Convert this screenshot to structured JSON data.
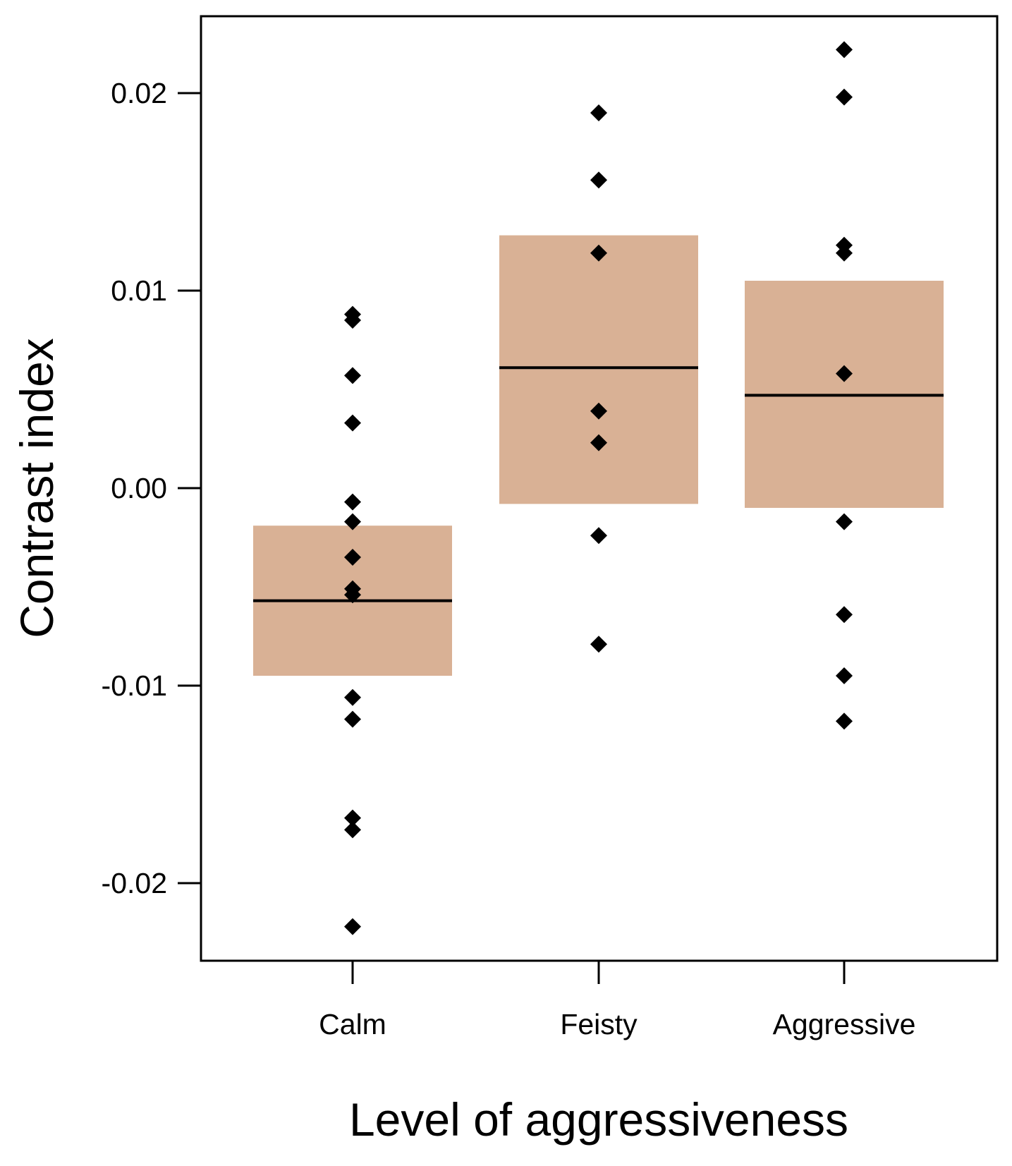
{
  "chart_data": {
    "type": "box-dot",
    "title": "",
    "xlabel": "Level of aggressiveness",
    "ylabel": "Contrast index",
    "ylim": [
      -0.0245,
      0.0235
    ],
    "yticks": [
      -0.02,
      -0.01,
      0.0,
      0.01,
      0.02
    ],
    "ytick_labels": [
      "-0.02",
      "-0.01",
      "0.00",
      "0.01",
      "0.02"
    ],
    "categories": [
      "Calm",
      "Feisty",
      "Aggressive"
    ],
    "boxes": [
      {
        "category": "Calm",
        "low": -0.0095,
        "high": -0.0019,
        "mean": -0.0057
      },
      {
        "category": "Feisty",
        "low": -0.0008,
        "high": 0.0128,
        "mean": 0.0061
      },
      {
        "category": "Aggressive",
        "low": -0.001,
        "high": 0.0105,
        "mean": 0.0047
      }
    ],
    "points": [
      {
        "category": "Calm",
        "values": [
          0.0088,
          0.0085,
          0.0057,
          0.0033,
          -0.0007,
          -0.0017,
          -0.0035,
          -0.0051,
          -0.0054,
          -0.0106,
          -0.0117,
          -0.0167,
          -0.0173,
          -0.0222
        ]
      },
      {
        "category": "Feisty",
        "values": [
          0.019,
          0.0156,
          0.0119,
          0.0039,
          0.0023,
          -0.0024,
          -0.0079
        ]
      },
      {
        "category": "Aggressive",
        "values": [
          0.0222,
          0.0198,
          0.0123,
          0.0119,
          0.0058,
          -0.0017,
          -0.0064,
          -0.0095,
          -0.0118
        ]
      }
    ],
    "colors": {
      "box_fill": "#d9b195",
      "mean_line": "#000000",
      "point": "#000000",
      "axis": "#000000"
    },
    "grid": false,
    "legend": "none"
  }
}
